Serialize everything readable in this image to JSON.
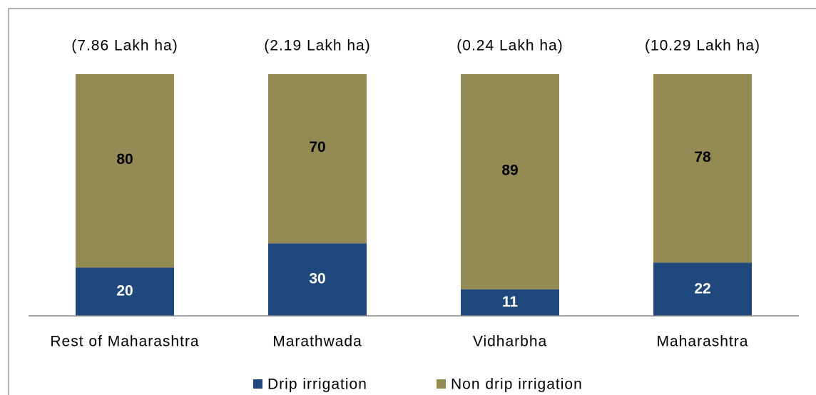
{
  "chart_data": {
    "type": "stacked_bar",
    "annotations": [
      "(7.86 Lakh ha)",
      "(2.19 Lakh ha)",
      "(0.24 Lakh ha)",
      "(10.29 Lakh ha)"
    ],
    "categories": [
      "Rest of Maharashtra",
      "Marathwada",
      "Vidharbha",
      "Maharashtra"
    ],
    "series": [
      {
        "name": "Drip irrigation",
        "color": "#1f497d",
        "values": [
          20,
          30,
          11,
          22
        ]
      },
      {
        "name": "Non drip irrigation",
        "color": "#948a54",
        "values": [
          80,
          70,
          89,
          78
        ]
      }
    ],
    "legend": "bottom"
  }
}
